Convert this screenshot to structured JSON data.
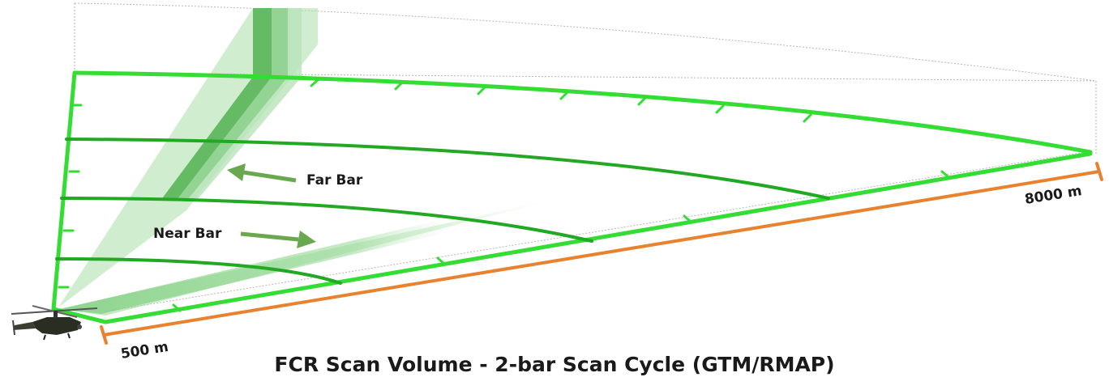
{
  "title": "FCR Scan Volume - 2-bar Scan Cycle (GTM/RMAP)",
  "labels": {
    "far_bar": "Far Bar",
    "near_bar": "Near Bar"
  },
  "range": {
    "min": "500 m",
    "max": "8000 m"
  },
  "colors": {
    "scan_line": "#33dd33",
    "scan_line_dark": "#1e8f1e",
    "beam_light": "#9ed99e",
    "beam_dark": "#4caf4c",
    "arrow": "#6aa84f",
    "range_line": "#e8822e",
    "outline": "#b0b0b0",
    "text": "#1a1a1a"
  },
  "icons": {
    "aircraft": "apache-helicopter-icon",
    "far_arrow": "arrow-left-icon",
    "near_arrow": "arrow-right-icon"
  }
}
